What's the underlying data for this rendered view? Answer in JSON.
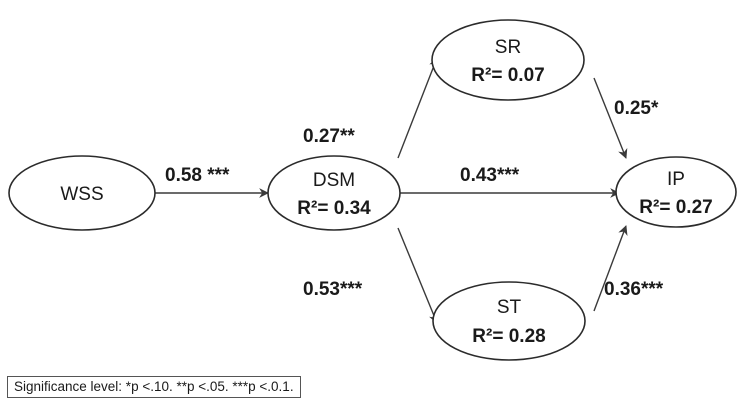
{
  "nodes": {
    "wss": {
      "name": "WSS"
    },
    "dsm": {
      "name": "DSM",
      "r2": "R²= 0.34"
    },
    "sr": {
      "name": "SR",
      "r2": "R²= 0.07"
    },
    "st": {
      "name": "ST",
      "r2": "R²= 0.28"
    },
    "ip": {
      "name": "IP",
      "r2": "R²= 0.27"
    }
  },
  "edges": {
    "wss_dsm": "0.58 ***",
    "dsm_sr": "0.27**",
    "dsm_ip": "0.43***",
    "dsm_st": "0.53***",
    "sr_ip": "0.25*",
    "st_ip": "0.36***"
  },
  "legend": "Significance level: *p <.10. **p <.05. ***p <.0.1."
}
